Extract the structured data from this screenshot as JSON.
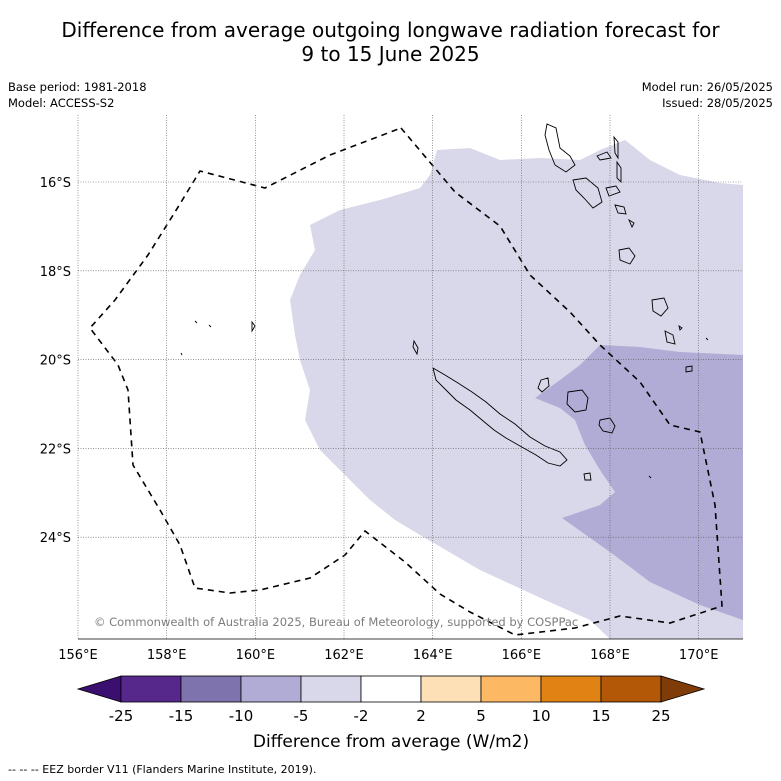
{
  "title": {
    "line1": "Difference from average outgoing longwave radiation forecast for",
    "line2": "9 to 15 June 2025"
  },
  "meta": {
    "base_period": "Base period: 1981-2018",
    "model": "Model: ACCESS-S2",
    "model_run": "Model run: 26/05/2025",
    "issued": "Issued: 28/05/2025"
  },
  "map": {
    "lon_ticks": [
      "156°E",
      "158°E",
      "160°E",
      "162°E",
      "164°E",
      "166°E",
      "168°E",
      "170°E"
    ],
    "lat_ticks": [
      "16°S",
      "18°S",
      "20°S",
      "22°S",
      "24°S"
    ],
    "copyright": "© Commonwealth of Australia 2025, Bureau of Meteorology, supported by COSPPac",
    "colors": {
      "band_minus5_minus2": "#d8d8ea",
      "band_minus10_minus5": "#b1acd5",
      "coastline": "#000000",
      "eez": "#000000"
    }
  },
  "colorbar": {
    "labels": [
      "-25",
      "-15",
      "-10",
      "-5",
      "-2",
      "2",
      "5",
      "10",
      "15",
      "25"
    ],
    "colors": [
      "#3b0f6f",
      "#57288c",
      "#7e73ac",
      "#b1acd5",
      "#d8d8ea",
      "#ffffff",
      "#fee0b6",
      "#fdb863",
      "#e08214",
      "#b35806",
      "#7f3b08"
    ],
    "title": "Difference from average (W/m2)"
  },
  "footnote": "--  --  -- EEZ border V11 (Flanders Marine Institute, 2019)."
}
